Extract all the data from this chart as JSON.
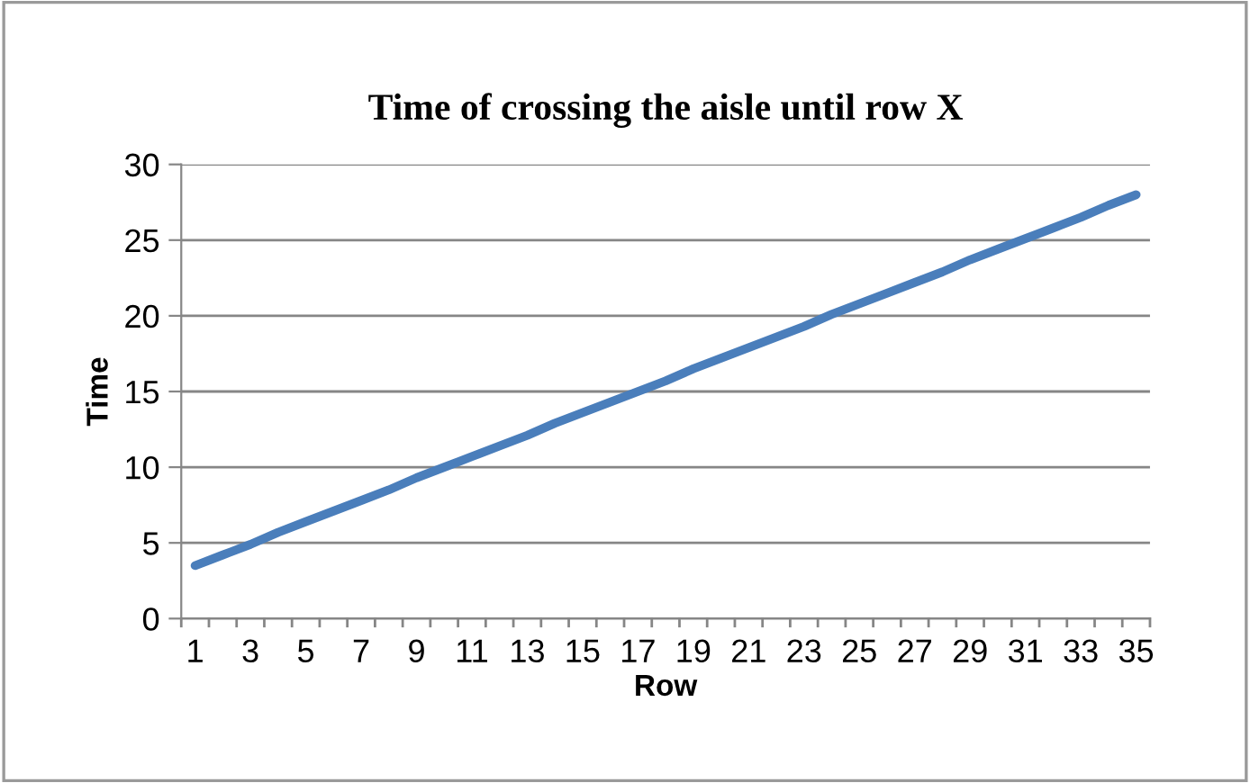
{
  "chart_data": {
    "type": "line",
    "title": "Time of crossing the aisle until row X",
    "xlabel": "Row",
    "ylabel": "Time",
    "categories": [
      "1",
      null,
      "3",
      null,
      "5",
      null,
      "7",
      null,
      "9",
      null,
      "11",
      null,
      "13",
      null,
      "15",
      null,
      "17",
      null,
      "19",
      null,
      "21",
      null,
      "23",
      null,
      "25",
      null,
      "27",
      null,
      "29",
      null,
      "31",
      null,
      "33",
      null,
      "35"
    ],
    "series": [
      {
        "color": "#4a7ebb",
        "values": [
          3.5,
          4.2,
          4.9,
          5.7,
          6.4,
          7.1,
          7.8,
          8.5,
          9.3,
          10.0,
          10.7,
          11.4,
          12.1,
          12.9,
          13.6,
          14.3,
          15.0,
          15.7,
          16.5,
          17.2,
          17.9,
          18.6,
          19.3,
          20.1,
          20.8,
          21.5,
          22.2,
          22.9,
          23.7,
          24.4,
          25.1,
          25.8,
          26.5,
          27.3,
          28.0
        ]
      }
    ],
    "ylim": [
      0,
      30
    ],
    "yticks": [
      0,
      5,
      10,
      15,
      20,
      25,
      30
    ],
    "grid": "y",
    "legend": false,
    "marker": "none",
    "line_style": "solid"
  }
}
